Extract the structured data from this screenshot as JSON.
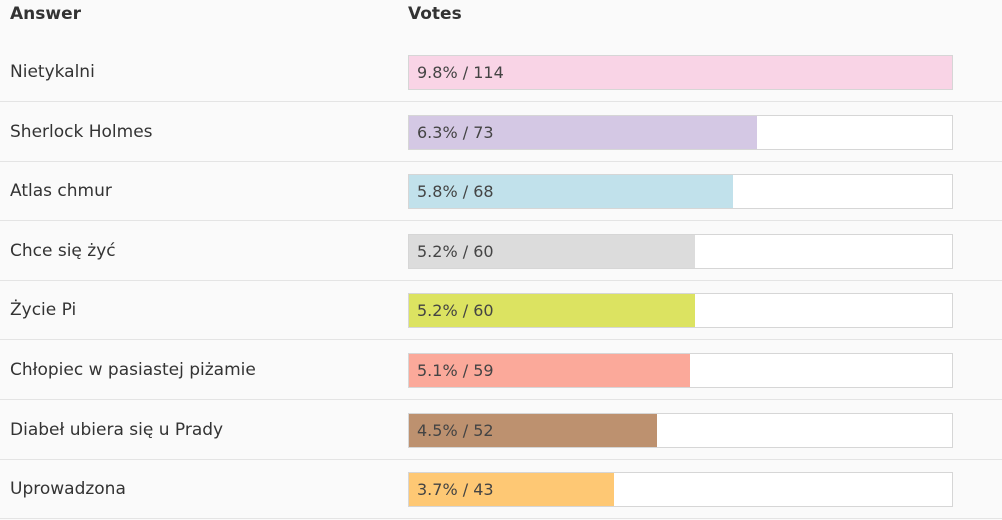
{
  "header": {
    "answer_label": "Answer",
    "votes_label": "Votes"
  },
  "chart_data": {
    "type": "bar",
    "categories": [
      "Nietykalni",
      "Sherlock Holmes",
      "Atlas chmur",
      "Chce się żyć",
      "Życie Pi",
      "Chłopiec w pasiastej piżamie",
      "Diabeł ubiera się u Prady",
      "Uprowadzona"
    ],
    "values": [
      114,
      73,
      68,
      60,
      60,
      59,
      52,
      43
    ],
    "labels": [
      "9.8% / 114",
      "6.3% / 73",
      "5.8% / 68",
      "5.2% / 60",
      "5.2% / 60",
      "5.1% / 59",
      "4.5% / 52",
      "3.7% / 43"
    ],
    "colors": [
      "#f9d4e6",
      "#d4c8e4",
      "#c1e1eb",
      "#dcdcdc",
      "#dce361",
      "#fba99a",
      "#bd916f",
      "#fec874"
    ],
    "xlabel": "Answer",
    "ylabel": "Votes",
    "max_value": 114
  }
}
